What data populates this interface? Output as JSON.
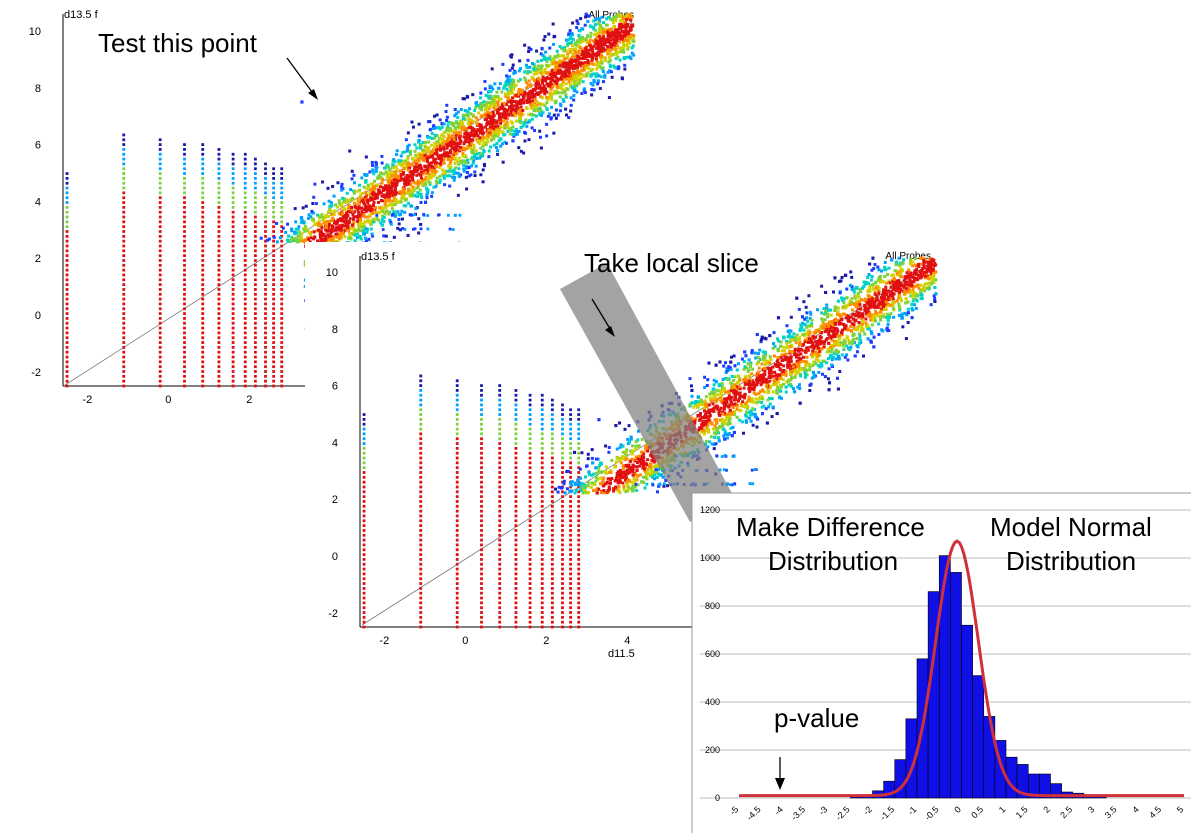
{
  "chart_data": [
    {
      "type": "scatter",
      "role": "panel-1",
      "legend": "All Probes",
      "ylabel": "d13.5 f",
      "xlabel": "",
      "x_ticks": [
        -2,
        0,
        2
      ],
      "y_ticks": [
        -2,
        0,
        2,
        4,
        6,
        8,
        10
      ],
      "xlim": [
        -2.6,
        11.5
      ],
      "ylim": [
        -2.5,
        10.3
      ],
      "annotation": "Test this point",
      "test_point": [
        3.3,
        7.5
      ],
      "vertical_stripes_x": [
        -2.5,
        -1.1,
        -0.2,
        0.4,
        0.85,
        1.25,
        1.6,
        1.9,
        2.15,
        2.4,
        2.6,
        2.8
      ]
    },
    {
      "type": "scatter",
      "role": "panel-2",
      "legend": "All Probes",
      "ylabel": "d13.5 f",
      "xlabel": "d11.5",
      "x_ticks": [
        -2,
        0,
        2,
        4
      ],
      "y_ticks": [
        -2,
        0,
        2,
        4,
        6,
        8,
        10
      ],
      "xlim": [
        -2.6,
        11.5
      ],
      "ylim": [
        -2.5,
        10.3
      ],
      "annotation": "Take local slice",
      "slice_center": [
        3.3,
        4.8
      ],
      "vertical_stripes_x": [
        -2.5,
        -1.1,
        -0.2,
        0.4,
        0.85,
        1.25,
        1.6,
        1.9,
        2.15,
        2.4,
        2.6,
        2.8
      ]
    },
    {
      "type": "bar",
      "role": "difference-histogram",
      "title_left": [
        "Make Difference",
        "Distribution"
      ],
      "title_right": [
        "Model Normal",
        "Distribution"
      ],
      "annotation": "p-value",
      "pvalue_x": -4,
      "x_ticks": [
        "-5",
        "-4.5",
        "-4",
        "-3.5",
        "-3",
        "-2.5",
        "-2",
        "-1.5",
        "-1",
        "-0.5",
        "0",
        "0.5",
        "1",
        "1.5",
        "2",
        "2.5",
        "3",
        "3.5",
        "4",
        "4.5",
        "5"
      ],
      "y_ticks": [
        0,
        200,
        400,
        600,
        800,
        1000,
        1200
      ],
      "ylim": [
        0,
        1200
      ],
      "bin_width": 0.25,
      "bin_start": -2.5,
      "values": [
        5,
        12,
        30,
        70,
        160,
        330,
        580,
        860,
        1010,
        940,
        720,
        510,
        340,
        240,
        170,
        140,
        100,
        100,
        60,
        25,
        20,
        10,
        8
      ],
      "normal_fit": {
        "peak": 1070,
        "mean": -0.1,
        "sd": 0.48,
        "baseline": 10
      },
      "colors": {
        "bar": "#1010e6",
        "curve": "#d0303a",
        "grid": "#bdbdbd"
      }
    }
  ],
  "colors": {
    "stripe": "#cc0000",
    "slice_band": "#808080"
  }
}
